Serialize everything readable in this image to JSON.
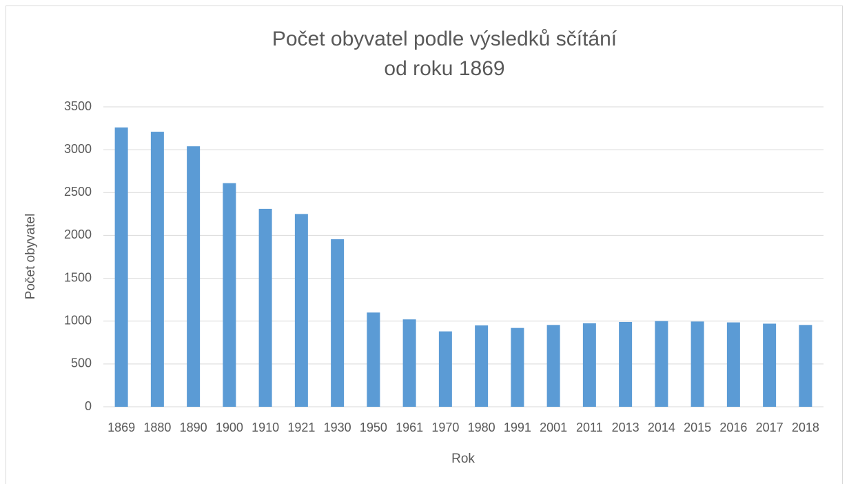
{
  "chart_data": {
    "type": "bar",
    "title": [
      "Počet obyvatel podle výsledků sčítání",
      "od roku 1869"
    ],
    "x_label": "Rok",
    "y_label": "Počet obyvatel",
    "categories": [
      "1869",
      "1880",
      "1890",
      "1900",
      "1910",
      "1921",
      "1930",
      "1950",
      "1961",
      "1970",
      "1980",
      "1991",
      "2001",
      "2011",
      "2013",
      "2014",
      "2015",
      "2016",
      "2017",
      "2018"
    ],
    "values": [
      3260,
      3210,
      3040,
      2610,
      2310,
      2250,
      1955,
      1100,
      1020,
      880,
      950,
      920,
      955,
      975,
      990,
      1000,
      995,
      985,
      970,
      955
    ],
    "color": "#5b9bd5",
    "ylim": [
      0,
      3500
    ],
    "yticks": [
      0,
      500,
      1000,
      1500,
      2000,
      2500,
      3000,
      3500
    ],
    "grid": true
  }
}
